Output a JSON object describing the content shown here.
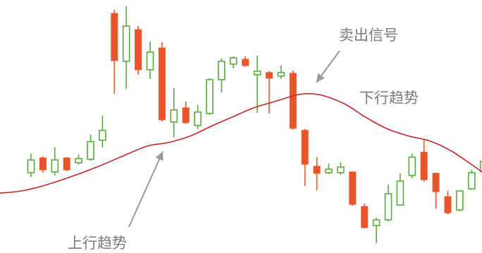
{
  "chart_data": {
    "type": "candlestick",
    "ylim": [
      0,
      359
    ],
    "colors": {
      "up": "#5aac3c",
      "down": "#e8552a",
      "ma": "#c0282c",
      "arrow": "#9a9a9a",
      "text": "#7a7a7a"
    },
    "candles": [
      {
        "open": 114,
        "close": 132,
        "high": 141,
        "low": 108
      },
      {
        "open": 135,
        "close": 118,
        "high": 137,
        "low": 114
      },
      {
        "open": 115,
        "close": 132,
        "high": 150,
        "low": 110
      },
      {
        "open": 135,
        "close": 118,
        "high": 136,
        "low": 116
      },
      {
        "open": 128,
        "close": 134,
        "high": 140,
        "low": 125
      },
      {
        "open": 133,
        "close": 158,
        "high": 168,
        "low": 131
      },
      {
        "open": 160,
        "close": 174,
        "high": 195,
        "low": 150
      },
      {
        "open": 340,
        "close": 273,
        "high": 345,
        "low": 226
      },
      {
        "open": 272,
        "close": 322,
        "high": 350,
        "low": 233
      },
      {
        "open": 317,
        "close": 260,
        "high": 322,
        "low": 253
      },
      {
        "open": 260,
        "close": 285,
        "high": 300,
        "low": 247
      },
      {
        "open": 291,
        "close": 189,
        "high": 299,
        "low": 187
      },
      {
        "open": 186,
        "close": 203,
        "high": 234,
        "low": 164
      },
      {
        "open": 206,
        "close": 185,
        "high": 215,
        "low": 183
      },
      {
        "open": 181,
        "close": 200,
        "high": 210,
        "low": 176
      },
      {
        "open": 198,
        "close": 246,
        "high": 248,
        "low": 196
      },
      {
        "open": 246,
        "close": 272,
        "high": 276,
        "low": 228
      },
      {
        "open": 268,
        "close": 277,
        "high": 279,
        "low": 262
      },
      {
        "open": 275,
        "close": 266,
        "high": 279,
        "low": 264
      },
      {
        "open": 253,
        "close": 258,
        "high": 280,
        "low": 199
      },
      {
        "open": 256,
        "close": 248,
        "high": 258,
        "low": 198
      },
      {
        "open": 251,
        "close": 256,
        "high": 266,
        "low": 247
      },
      {
        "open": 255,
        "close": 177,
        "high": 259,
        "low": 175
      },
      {
        "open": 174,
        "close": 126,
        "high": 176,
        "low": 95
      },
      {
        "open": 123,
        "close": 113,
        "high": 136,
        "low": 89
      },
      {
        "open": 114,
        "close": 119,
        "high": 127,
        "low": 112
      },
      {
        "open": 114,
        "close": 122,
        "high": 129,
        "low": 111
      },
      {
        "open": 115,
        "close": 69,
        "high": 116,
        "low": 67
      },
      {
        "open": 66,
        "close": 36,
        "high": 70,
        "low": 35
      },
      {
        "open": 39,
        "close": 47,
        "high": 50,
        "low": 14
      },
      {
        "open": 47,
        "close": 84,
        "high": 97,
        "low": 45
      },
      {
        "open": 68,
        "close": 102,
        "high": 113,
        "low": 67
      },
      {
        "open": 110,
        "close": 136,
        "high": 141,
        "low": 106
      },
      {
        "open": 143,
        "close": 104,
        "high": 162,
        "low": 101
      },
      {
        "open": 113,
        "close": 87,
        "high": 114,
        "low": 63
      },
      {
        "open": 80,
        "close": 57,
        "high": 88,
        "low": 55
      },
      {
        "open": 61,
        "close": 88,
        "high": 89,
        "low": 59
      },
      {
        "open": 91,
        "close": 114,
        "high": 118,
        "low": 90
      },
      {
        "open": 116,
        "close": 130,
        "high": 136,
        "low": 114
      }
    ],
    "ma_line": [
      [
        0,
        85
      ],
      [
        30,
        88
      ],
      [
        60,
        95
      ],
      [
        100,
        108
      ],
      [
        140,
        123
      ],
      [
        180,
        140
      ],
      [
        210,
        152
      ],
      [
        240,
        157
      ],
      [
        270,
        166
      ],
      [
        300,
        180
      ],
      [
        330,
        193
      ],
      [
        360,
        206
      ],
      [
        390,
        215
      ],
      [
        420,
        224
      ],
      [
        440,
        226
      ],
      [
        460,
        223
      ],
      [
        490,
        211
      ],
      [
        520,
        192
      ],
      [
        550,
        176
      ],
      [
        580,
        166
      ],
      [
        610,
        159
      ],
      [
        640,
        145
      ],
      [
        670,
        125
      ],
      [
        684,
        115
      ]
    ],
    "annotations": {
      "sell_signal": "卖出信号",
      "downtrend": "下行趋势",
      "uptrend": "上行趋势"
    }
  }
}
